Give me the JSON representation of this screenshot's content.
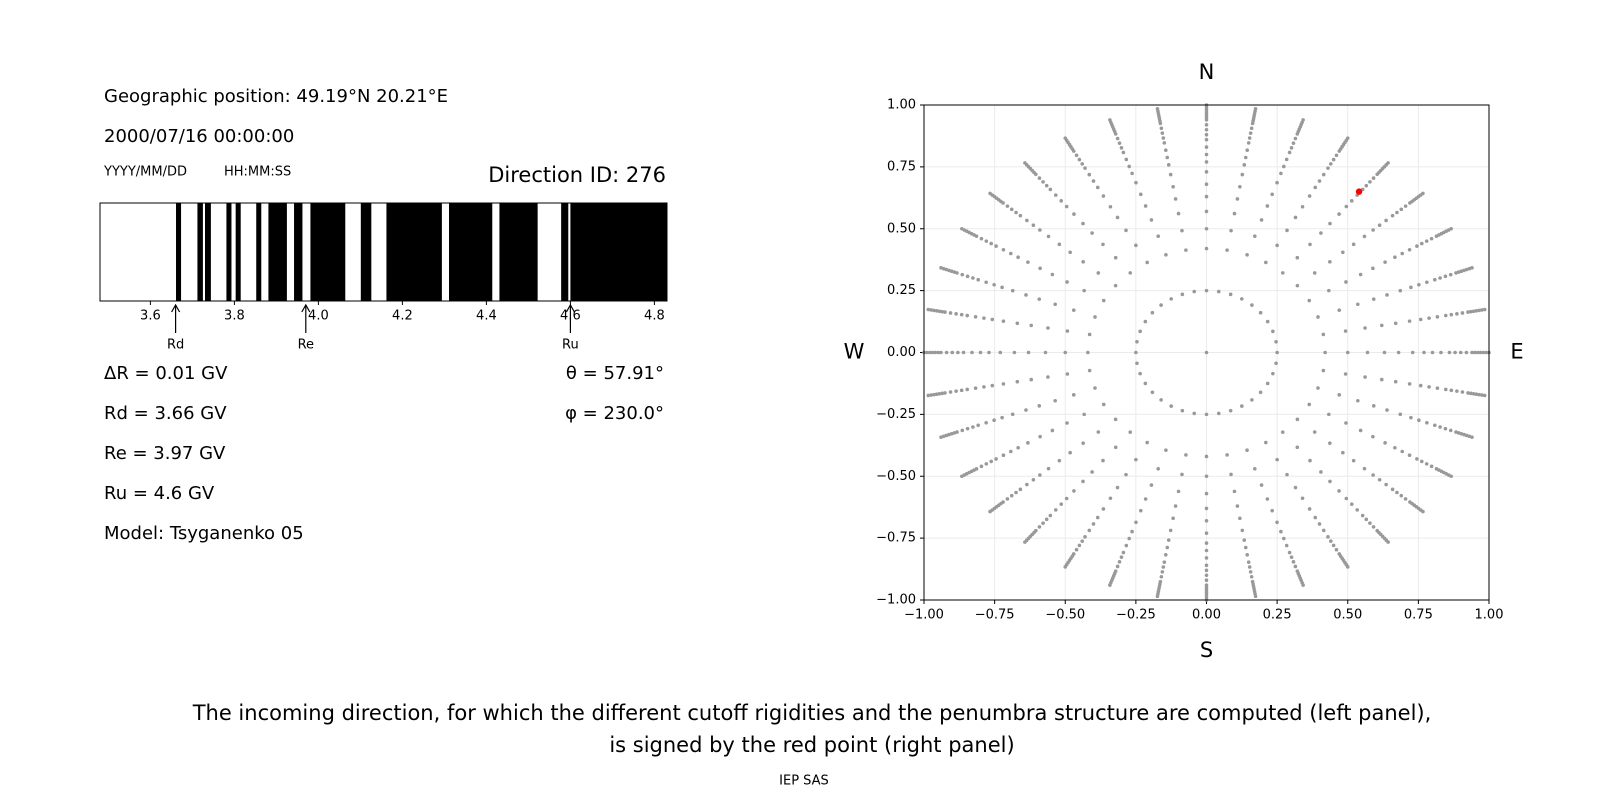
{
  "header": {
    "position": "Geographic position: 49.19°N 20.21°E",
    "datetime": "2000/07/16 00:00:00",
    "date_format": "YYYY/MM/DD",
    "time_format": "HH:MM:SS",
    "direction": "Direction ID: 276"
  },
  "results": {
    "left": [
      "ΔR = 0.01 GV",
      "Rd = 3.66 GV",
      "Re = 3.97 GV",
      "Ru = 4.6 GV",
      "Model: Tsyganenko 05"
    ],
    "right": [
      "θ = 57.91°",
      "φ = 230.0°"
    ]
  },
  "chart_data": [
    {
      "type": "penumbra",
      "xlim": [
        3.48,
        4.83
      ],
      "xticks": [
        3.6,
        3.8,
        {
          "value": 4,
          "label": "4.0"
        },
        4.2,
        4.4,
        4.6,
        4.8
      ],
      "color": "#000000",
      "bands": [
        [
          3.661,
          3.673
        ],
        [
          3.712,
          3.725
        ],
        [
          3.73,
          3.744
        ],
        [
          3.781,
          3.793
        ],
        [
          3.803,
          3.815
        ],
        [
          3.852,
          3.864
        ],
        [
          3.881,
          3.925
        ],
        [
          3.942,
          3.962
        ],
        [
          3.981,
          4.064
        ],
        [
          4.101,
          4.126
        ],
        [
          4.162,
          4.294
        ],
        [
          4.311,
          4.414
        ],
        [
          4.431,
          4.522
        ],
        [
          4.578,
          4.595
        ],
        [
          4.6,
          4.83
        ]
      ],
      "markers": [
        {
          "label": "Rd",
          "value": 3.66
        },
        {
          "label": "Re",
          "value": 3.97
        },
        {
          "label": "Ru",
          "value": 4.6
        }
      ]
    },
    {
      "type": "directions",
      "xlim": [
        -1,
        1
      ],
      "ylim": [
        -1,
        1
      ],
      "xticks": [
        {
          "value": -1,
          "label": "−1.00"
        },
        {
          "value": -0.75,
          "label": "−0.75"
        },
        {
          "value": -0.5,
          "label": "−0.50"
        },
        {
          "value": -0.25,
          "label": "−0.25"
        },
        {
          "value": 0,
          "label": "0.00"
        },
        {
          "value": 0.25,
          "label": "0.25"
        },
        {
          "value": 0.5,
          "label": "0.50"
        },
        {
          "value": 0.75,
          "label": "0.75"
        },
        {
          "value": 1,
          "label": "1.00"
        }
      ],
      "yticks": [
        {
          "value": -1,
          "label": "−1.00"
        },
        {
          "value": -0.75,
          "label": "−0.75"
        },
        {
          "value": -0.5,
          "label": "−0.50"
        },
        {
          "value": -0.25,
          "label": "−0.25"
        },
        {
          "value": 0,
          "label": "0.00"
        },
        {
          "value": 0.25,
          "label": "0.25"
        },
        {
          "value": 0.5,
          "label": "0.50"
        },
        {
          "value": 0.75,
          "label": "0.75"
        },
        {
          "value": 1,
          "label": "1.00"
        }
      ],
      "grid": true,
      "compass": {
        "top": "N",
        "bottom": "S",
        "left": "W",
        "right": "E"
      },
      "color": "#999999",
      "center": {
        "x": 0,
        "y": 0
      },
      "radii": [
        0.25,
        0.42,
        0.5,
        0.57,
        0.63,
        0.68,
        0.73,
        0.77,
        0.8,
        0.83,
        0.86,
        0.88,
        0.9,
        0.92,
        0.94,
        0.95,
        0.96,
        0.97,
        0.98,
        0.99,
        1.0
      ],
      "azimuths": [
        0,
        10,
        20,
        30,
        40,
        50,
        60,
        70,
        80,
        90,
        100,
        110,
        120,
        130,
        140,
        150,
        160,
        170,
        180,
        190,
        200,
        210,
        220,
        230,
        240,
        250,
        260,
        270,
        280,
        290,
        300,
        310,
        320,
        330,
        340,
        350
      ],
      "selected": {
        "x": 0.54,
        "y": 0.65,
        "color": "#ff0000"
      }
    }
  ],
  "caption": [
    "The incoming direction, for which the different cutoff rigidities and the penumbra structure are computed (left panel),",
    "is signed by the red point (right panel)"
  ],
  "footer": "IEP SAS"
}
